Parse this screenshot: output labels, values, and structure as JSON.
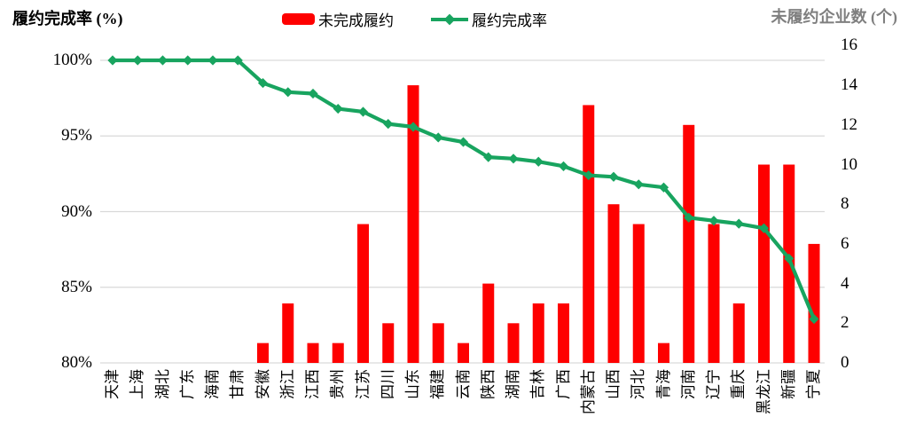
{
  "chart_data": {
    "type": "combo-bar-line",
    "title": "",
    "left_axis": {
      "title": "履约完成率 (%)",
      "tick_labels": [
        "100%",
        "95%",
        "90%",
        "85%",
        "80%"
      ],
      "tick_values": [
        100,
        95,
        90,
        85,
        80
      ],
      "min": 80,
      "max": 100,
      "unit": "%"
    },
    "right_axis": {
      "title": "未履约企业数 (个)",
      "tick_labels": [
        "16",
        "14",
        "12",
        "10",
        "8",
        "6",
        "4",
        "2",
        "0"
      ],
      "tick_values": [
        16,
        14,
        12,
        10,
        8,
        6,
        4,
        2,
        0
      ],
      "min": 0,
      "max": 16
    },
    "categories": [
      "天津",
      "上海",
      "湖北",
      "广东",
      "海南",
      "甘肃",
      "安徽",
      "浙江",
      "江西",
      "贵州",
      "江苏",
      "四川",
      "山东",
      "福建",
      "云南",
      "陕西",
      "湖南",
      "吉林",
      "广西",
      "内蒙古",
      "山西",
      "河北",
      "青海",
      "河南",
      "辽宁",
      "重庆",
      "黑龙江",
      "新疆",
      "宁夏"
    ],
    "series": [
      {
        "name": "未完成履约",
        "type": "bar",
        "axis": "right",
        "color": "#fe0000",
        "values": [
          0,
          0,
          0,
          0,
          0,
          0,
          1,
          3,
          1,
          1,
          7,
          2,
          14,
          2,
          1,
          4,
          2,
          3,
          3,
          13,
          8,
          7,
          1,
          12,
          7,
          3,
          10,
          10,
          6
        ]
      },
      {
        "name": "履约完成率",
        "type": "line",
        "axis": "left",
        "marker": "diamond",
        "color": "#18a45f",
        "values": [
          100,
          100,
          100,
          100,
          100,
          100,
          98.5,
          97.9,
          97.8,
          96.8,
          96.6,
          95.8,
          95.6,
          94.9,
          94.6,
          93.6,
          93.5,
          93.3,
          93.0,
          92.4,
          92.3,
          91.8,
          91.6,
          89.6,
          89.4,
          89.2,
          88.9,
          86.9,
          82.9
        ]
      }
    ],
    "legend": {
      "position": "top",
      "items": [
        "未完成履约",
        "履约完成率"
      ]
    },
    "grid": "horizontal-left-axis",
    "gridline_color": "#d9d9d9"
  }
}
